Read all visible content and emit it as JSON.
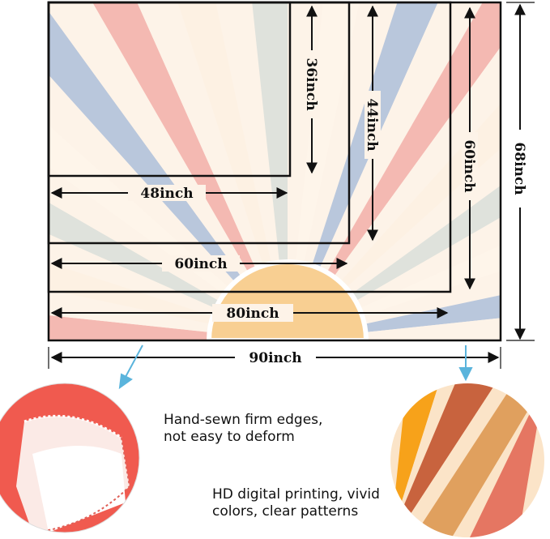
{
  "sizes": {
    "w48": "48inch",
    "h36": "36inch",
    "w60": "60inch",
    "h44": "44inch",
    "w80": "80inch",
    "h60": "60inch",
    "w90": "90inch",
    "h68": "68inch"
  },
  "features": {
    "edges": [
      "Hand-sewn firm edges,",
      "not easy to deform"
    ],
    "printing": [
      "HD digital printing, vivid",
      "colors, clear patterns"
    ]
  },
  "colors": {
    "rays": [
      "#f4b9b2",
      "#fbe9d6",
      "#a9cdd6",
      "#fdf1e3",
      "#f7cfa2",
      "#fbece0",
      "#dfe2dc",
      "#fdf3e8",
      "#f2b6b0",
      "#fef5ea",
      "#f8d49a",
      "#fbeee2",
      "#b9c7dc",
      "#f8ede2",
      "#c6d3bc"
    ],
    "sun": "#f8cf92",
    "callout": "#5ab4dc"
  }
}
